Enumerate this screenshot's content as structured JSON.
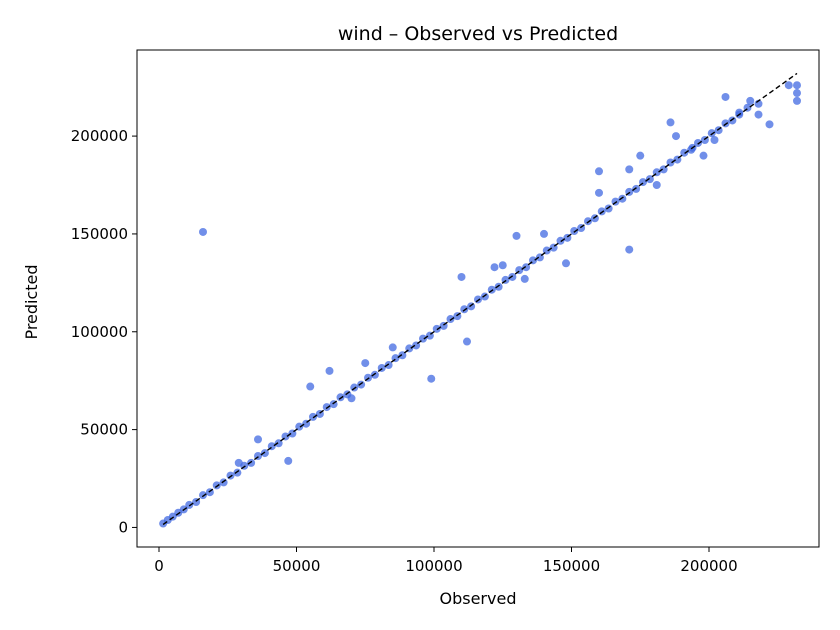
{
  "chart_data": {
    "type": "scatter",
    "title": "wind – Observed vs Predicted",
    "xlabel": "Observed",
    "ylabel": "Predicted",
    "xlim": [
      -8000,
      240000
    ],
    "ylim": [
      -10000,
      244000
    ],
    "xticks": [
      0,
      50000,
      100000,
      150000,
      200000
    ],
    "yticks": [
      0,
      50000,
      100000,
      150000,
      200000
    ],
    "xtick_labels": [
      "0",
      "50000",
      "100000",
      "150000",
      "200000"
    ],
    "ytick_labels": [
      "0",
      "50000",
      "100000",
      "150000",
      "200000"
    ],
    "grid": false,
    "point_color": "#4169e1",
    "reference_line": {
      "style": "dashed",
      "color": "#000000",
      "x": [
        1500,
        232000
      ],
      "y": [
        1500,
        232000
      ]
    },
    "series": [
      {
        "x": [
          1500,
          3200,
          5000,
          7000,
          9000,
          11000,
          13500,
          16000,
          18500,
          21000,
          23500,
          26000,
          28500,
          31000,
          33500,
          36000,
          38500,
          41000,
          43500,
          46000,
          48500,
          51000,
          53500,
          56000,
          58500,
          61000,
          63500,
          66000,
          68500,
          71000,
          73500,
          76000,
          78500,
          81000,
          83500,
          86000,
          88500,
          91000,
          93500,
          96000,
          98500,
          101000,
          103500,
          106000,
          108500,
          111000,
          113500,
          116000,
          118500,
          121000,
          123500,
          126000,
          128500,
          131000,
          133500,
          136000,
          138500,
          141000,
          143500,
          146000,
          148500,
          151000,
          153500,
          156000,
          158500,
          161000,
          163500,
          166000,
          168500,
          171000,
          173500,
          176000,
          178500,
          181000,
          183500,
          186000,
          188500,
          191000,
          193500,
          196000,
          198500,
          201000,
          203500,
          206000,
          208500,
          211000,
          214000,
          218000,
          222000,
          232000,
          232000,
          232000,
          16000,
          55000,
          62000,
          47000,
          99000,
          112000,
          110000,
          171000,
          160000,
          215000,
          206000,
          194000,
          181000,
          140000,
          148000,
          125000,
          130000,
          85000,
          75000,
          36000,
          29000,
          70000,
          160000,
          175000,
          186000,
          198000,
          211000,
          229000,
          122000,
          133000,
          171000,
          188000,
          202000,
          218000
        ],
        "y": [
          2000,
          3800,
          5500,
          7500,
          9200,
          11500,
          13000,
          16500,
          18000,
          21500,
          23000,
          26500,
          28000,
          31500,
          33000,
          36500,
          38000,
          41500,
          43000,
          46500,
          48000,
          51500,
          53000,
          56500,
          58000,
          61500,
          63000,
          66500,
          68000,
          71500,
          73000,
          76500,
          78000,
          81500,
          83000,
          86500,
          88000,
          91500,
          93000,
          96500,
          98000,
          101500,
          103000,
          106500,
          108000,
          111500,
          113000,
          116500,
          118000,
          121500,
          123000,
          126500,
          128000,
          131500,
          133000,
          136500,
          138000,
          141500,
          143000,
          146500,
          148000,
          151500,
          153000,
          156500,
          158000,
          161500,
          163000,
          166500,
          168000,
          171500,
          173000,
          176500,
          178000,
          181500,
          183000,
          186500,
          188000,
          191500,
          193000,
          196500,
          198000,
          201500,
          203000,
          206500,
          208000,
          211000,
          214500,
          216500,
          206000,
          226000,
          222000,
          218000,
          151000,
          72000,
          80000,
          34000,
          76000,
          95000,
          128000,
          142000,
          182000,
          218000,
          220000,
          194000,
          175000,
          150000,
          135000,
          134000,
          149000,
          92000,
          84000,
          45000,
          33000,
          66000,
          171000,
          190000,
          207000,
          190000,
          212000,
          226000,
          133000,
          127000,
          183000,
          200000,
          198000,
          211000
        ]
      }
    ]
  }
}
